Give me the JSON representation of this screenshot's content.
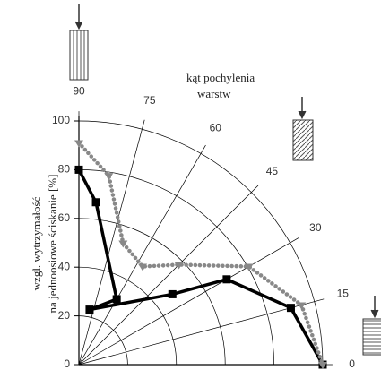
{
  "chart_data": {
    "type": "polar",
    "ylabel": [
      "wzgl. wytrzymałość",
      "na jednoosiowe ściskanie [%]"
    ],
    "annotation": [
      "kąt pochylenia",
      "warstw"
    ],
    "ylim": [
      0,
      100
    ],
    "yticks": [
      0,
      20,
      40,
      60,
      80,
      100
    ],
    "thetalim": [
      0,
      90
    ],
    "thetaticks": [
      0,
      15,
      30,
      45,
      60,
      75,
      90
    ],
    "grid": true,
    "series": [
      {
        "color": "#000000",
        "marker": "square",
        "x": [
          90,
          84,
          60,
          79,
          37,
          30,
          15,
          0
        ],
        "values": [
          80,
          67,
          31,
          23,
          48,
          70,
          90,
          100
        ]
      },
      {
        "color": "#888888",
        "marker": "triangle",
        "x": [
          90,
          81,
          70,
          57,
          45,
          30,
          15,
          0
        ],
        "values": [
          91,
          78.5,
          53,
          48,
          58,
          80.5,
          94.5,
          100
        ]
      }
    ]
  }
}
